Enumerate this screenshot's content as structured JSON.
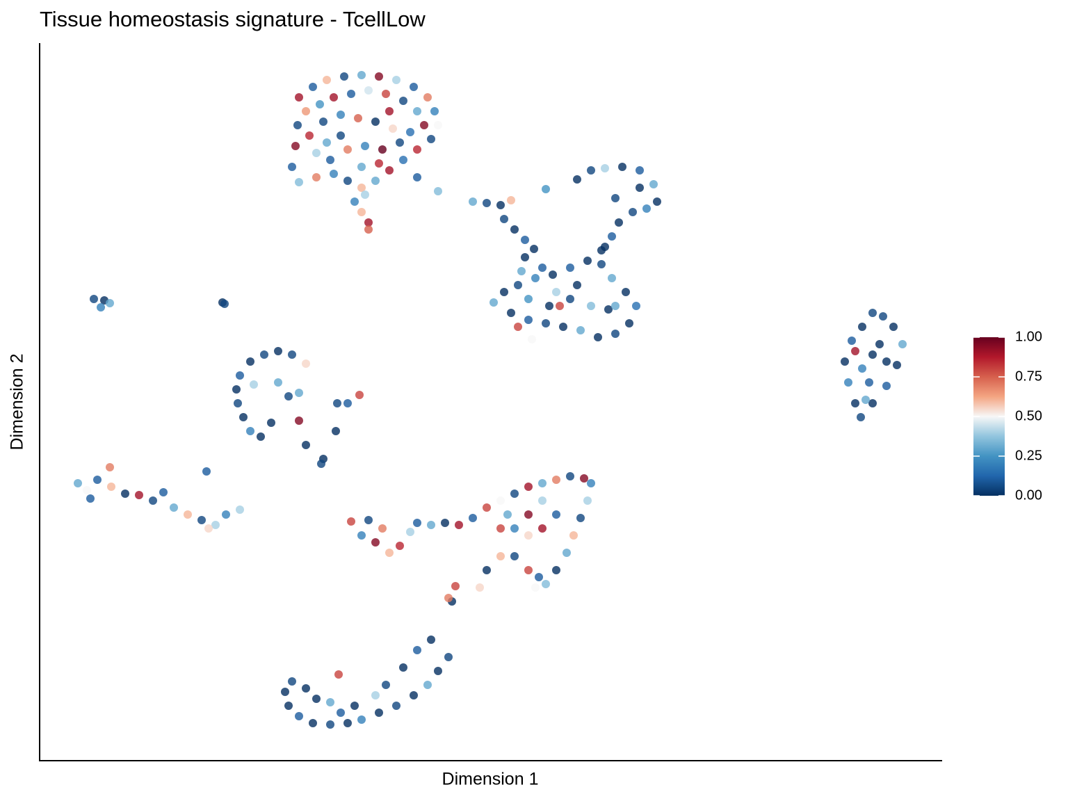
{
  "chart_data": {
    "type": "scatter",
    "title": "Tissue homeostasis signature - TcellLow",
    "xlabel": "Dimension 1",
    "ylabel": "Dimension 2",
    "xlim": [
      0,
      1298
    ],
    "ylim": [
      0,
      1032
    ],
    "x": [
      373,
      393,
      413,
      438,
      463,
      488,
      513,
      538,
      558,
      568,
      573,
      563,
      543,
      523,
      503,
      483,
      463,
      443,
      423,
      398,
      373,
      363,
      368,
      371,
      383,
      403,
      423,
      448,
      473,
      498,
      523,
      543,
      553,
      533,
      508,
      483,
      458,
      433,
      408,
      388,
      398,
      418,
      443,
      468,
      493,
      518,
      463,
      488,
      453,
      463,
      473,
      473,
      468,
      543,
      573,
      433,
      503,
      413,
      623,
      643,
      663,
      678,
      668,
      683,
      698,
      711,
      728,
      773,
      793,
      813,
      838,
      863,
      883,
      888,
      873,
      853,
      833,
      823,
      813,
      828,
      863,
      653,
      668,
      688,
      713,
      738,
      763,
      788,
      808,
      823,
      843,
      858,
      848,
      828,
      803,
      778,
      753,
      728,
      703,
      678,
      703,
      733,
      763,
      793,
      818,
      773,
      743,
      723,
      808,
      693,
      748,
      688,
      708,
      828,
      698,
      1198,
      1183,
      1168,
      1158,
      1163,
      1173,
      1181,
      1198,
      1218,
      1233,
      1241,
      1228,
      1213,
      1198,
      1183,
      1208,
      1193,
      1218,
      1173,
      1188,
      78,
      93,
      88,
      101,
      263,
      266,
      343,
      323,
      303,
      288,
      283,
      285,
      293,
      303,
      318,
      363,
      383,
      308,
      343,
      333,
      373,
      460,
      428,
      443,
      426,
      373,
      358,
      383,
      408,
      405,
      240,
      55,
      68,
      83,
      101,
      103,
      123,
      143,
      163,
      178,
      193,
      213,
      233,
      253,
      268,
      288,
      73,
      243,
      448,
      463,
      483,
      503,
      518,
      533,
      543,
      563,
      583,
      603,
      623,
      643,
      663,
      683,
      703,
      723,
      743,
      763,
      783,
      793,
      788,
      778,
      768,
      758,
      743,
      728,
      713,
      703,
      683,
      663,
      643,
      663,
      683,
      703,
      723,
      743,
      723,
      703,
      673,
      493,
      473,
      598,
      633,
      593,
      588,
      718,
      353,
      363,
      383,
      358,
      373,
      393,
      418,
      443,
      463,
      488,
      513,
      538,
      558,
      573,
      588,
      563,
      543,
      523,
      498,
      430,
      418,
      398,
      433,
      483,
      453
    ],
    "y": [
      954,
      969,
      979,
      984,
      986,
      984,
      979,
      969,
      954,
      934,
      914,
      894,
      879,
      864,
      849,
      834,
      824,
      834,
      844,
      839,
      832,
      854,
      884,
      914,
      934,
      944,
      954,
      959,
      964,
      959,
      949,
      934,
      914,
      904,
      909,
      919,
      924,
      929,
      919,
      899,
      874,
      864,
      879,
      884,
      879,
      889,
      854,
      859,
      804,
      789,
      774,
      764,
      814,
      839,
      819,
      899,
      934,
      889,
      804,
      802,
      799,
      806,
      779,
      764,
      749,
      736,
      822,
      836,
      849,
      852,
      854,
      849,
      829,
      804,
      794,
      789,
      774,
      754,
      739,
      809,
      824,
      659,
      674,
      684,
      694,
      699,
      709,
      719,
      714,
      694,
      674,
      654,
      629,
      614,
      609,
      619,
      624,
      629,
      634,
      644,
      664,
      654,
      664,
      654,
      649,
      684,
      674,
      709,
      734,
      704,
      654,
      624,
      606,
      654,
      724,
      644,
      624,
      604,
      574,
      544,
      514,
      494,
      514,
      539,
      569,
      599,
      624,
      639,
      584,
      564,
      599,
      544,
      574,
      589,
      519,
      664,
      662,
      652,
      658,
      659,
      657,
      589,
      584,
      574,
      554,
      534,
      514,
      494,
      474,
      466,
      584,
      571,
      541,
      544,
      486,
      489,
      526,
      514,
      514,
      474,
      529,
      524,
      454,
      434,
      427,
      416,
      399,
      389,
      404,
      422,
      394,
      384,
      382,
      374,
      386,
      364,
      354,
      346,
      339,
      354,
      361,
      377,
      334,
      344,
      324,
      314,
      299,
      309,
      329,
      342,
      339,
      342,
      339,
      349,
      364,
      374,
      384,
      394,
      399,
      404,
      409,
      406,
      399,
      374,
      349,
      324,
      299,
      274,
      254,
      249,
      274,
      294,
      294,
      274,
      334,
      334,
      324,
      334,
      354,
      374,
      354,
      354,
      334,
      346,
      251,
      249,
      229,
      234,
      264,
      99,
      114,
      104,
      79,
      64,
      54,
      52,
      54,
      59,
      69,
      79,
      94,
      109,
      129,
      149,
      174,
      159,
      134,
      109,
      124,
      84,
      89,
      69,
      94,
      79
    ],
    "color_values": [
      0.9,
      0.1,
      0.6,
      0.05,
      0.3,
      0.95,
      0.4,
      0.1,
      0.7,
      0.2,
      0.5,
      0.05,
      0.85,
      0.15,
      0.9,
      0.3,
      0.6,
      0.05,
      0.2,
      0.7,
      0.35,
      0.1,
      0.95,
      0.05,
      0.65,
      0.25,
      0.9,
      0.1,
      0.45,
      0.8,
      0.05,
      0.3,
      0.95,
      0.15,
      0.55,
      0,
      0.75,
      0.2,
      0.05,
      0.85,
      0.4,
      0.1,
      0.7,
      0.2,
      1,
      0.05,
      0.3,
      0.85,
      0.2,
      0.6,
      0.9,
      0.75,
      0.4,
      0.1,
      0.35,
      0.05,
      0.9,
      0.3,
      0.3,
      0.05,
      0,
      0.6,
      0.05,
      0,
      0.1,
      0,
      0.25,
      0,
      0.05,
      0.4,
      0,
      0.1,
      0.3,
      0,
      0.2,
      0.05,
      0,
      0.1,
      0,
      0.05,
      0,
      0.3,
      0,
      0.05,
      0.2,
      0,
      0.1,
      0,
      0.05,
      0.3,
      0,
      0.15,
      0,
      0.05,
      0,
      0.3,
      0,
      0.05,
      0.1,
      0,
      0.25,
      0,
      0.05,
      0.35,
      0,
      0,
      0.4,
      0.1,
      0,
      0.3,
      0.8,
      0.8,
      0.5,
      0.3,
      0,
      0.05,
      0,
      0.1,
      0,
      0.2,
      0,
      0.05,
      0,
      0.1,
      0,
      0.3,
      0,
      0.05,
      0,
      0.2,
      0,
      0.1,
      0,
      0.9,
      0.3,
      0.05,
      0,
      0.2,
      0.3,
      0,
      0.05,
      0,
      0.05,
      0,
      0.1,
      0,
      0.05,
      0,
      0.2,
      0,
      0.05,
      0.55,
      0.4,
      0.3,
      0,
      0.95,
      0.8,
      0.05,
      0.1,
      0,
      0.3,
      0.05,
      0,
      0,
      0.05,
      0.1,
      0.3,
      0.5,
      0.1,
      0.7,
      0.6,
      0,
      0.9,
      0.05,
      0.1,
      0.3,
      0.6,
      0.05,
      0.4,
      0.2,
      0.4,
      0.1,
      0.55,
      0.8,
      0.2,
      0.95,
      0.6,
      0.85,
      0.4,
      0.1,
      0.3,
      0,
      0.9,
      0.1,
      0.8,
      0.5,
      0.05,
      0.9,
      0.3,
      0.7,
      0.05,
      0.95,
      0.2,
      0.4,
      0.05,
      0.6,
      0.3,
      0,
      0.35,
      0.5,
      0.8,
      0.05,
      0.6,
      0,
      0.8,
      0.2,
      0.55,
      0.9,
      0.1,
      0.4,
      0.95,
      0.3,
      0.7,
      0.05,
      0.8,
      0.55,
      0,
      0.7,
      0.1,
      0,
      0.05,
      0,
      0,
      0.1,
      0,
      0.05,
      0,
      0.2,
      0,
      0.05,
      0,
      0.3,
      0,
      0.05,
      0,
      0.1,
      0,
      0.05,
      0.8,
      0.3,
      0,
      0.1,
      0.4,
      0
    ],
    "colorbar": {
      "clim": [
        0,
        1
      ],
      "colors": [
        "#053061",
        "#2166ac",
        "#4393c3",
        "#92c5de",
        "#f7f7f7",
        "#f4a582",
        "#d6604d",
        "#b2182b",
        "#67001f"
      ],
      "ticks": [
        {
          "value": 0,
          "label": "0.00"
        },
        {
          "value": 0.25,
          "label": "0.25"
        },
        {
          "value": 0.5,
          "label": "0.50"
        },
        {
          "value": 0.75,
          "label": "0.75"
        },
        {
          "value": 1,
          "label": "1.00"
        }
      ]
    }
  }
}
